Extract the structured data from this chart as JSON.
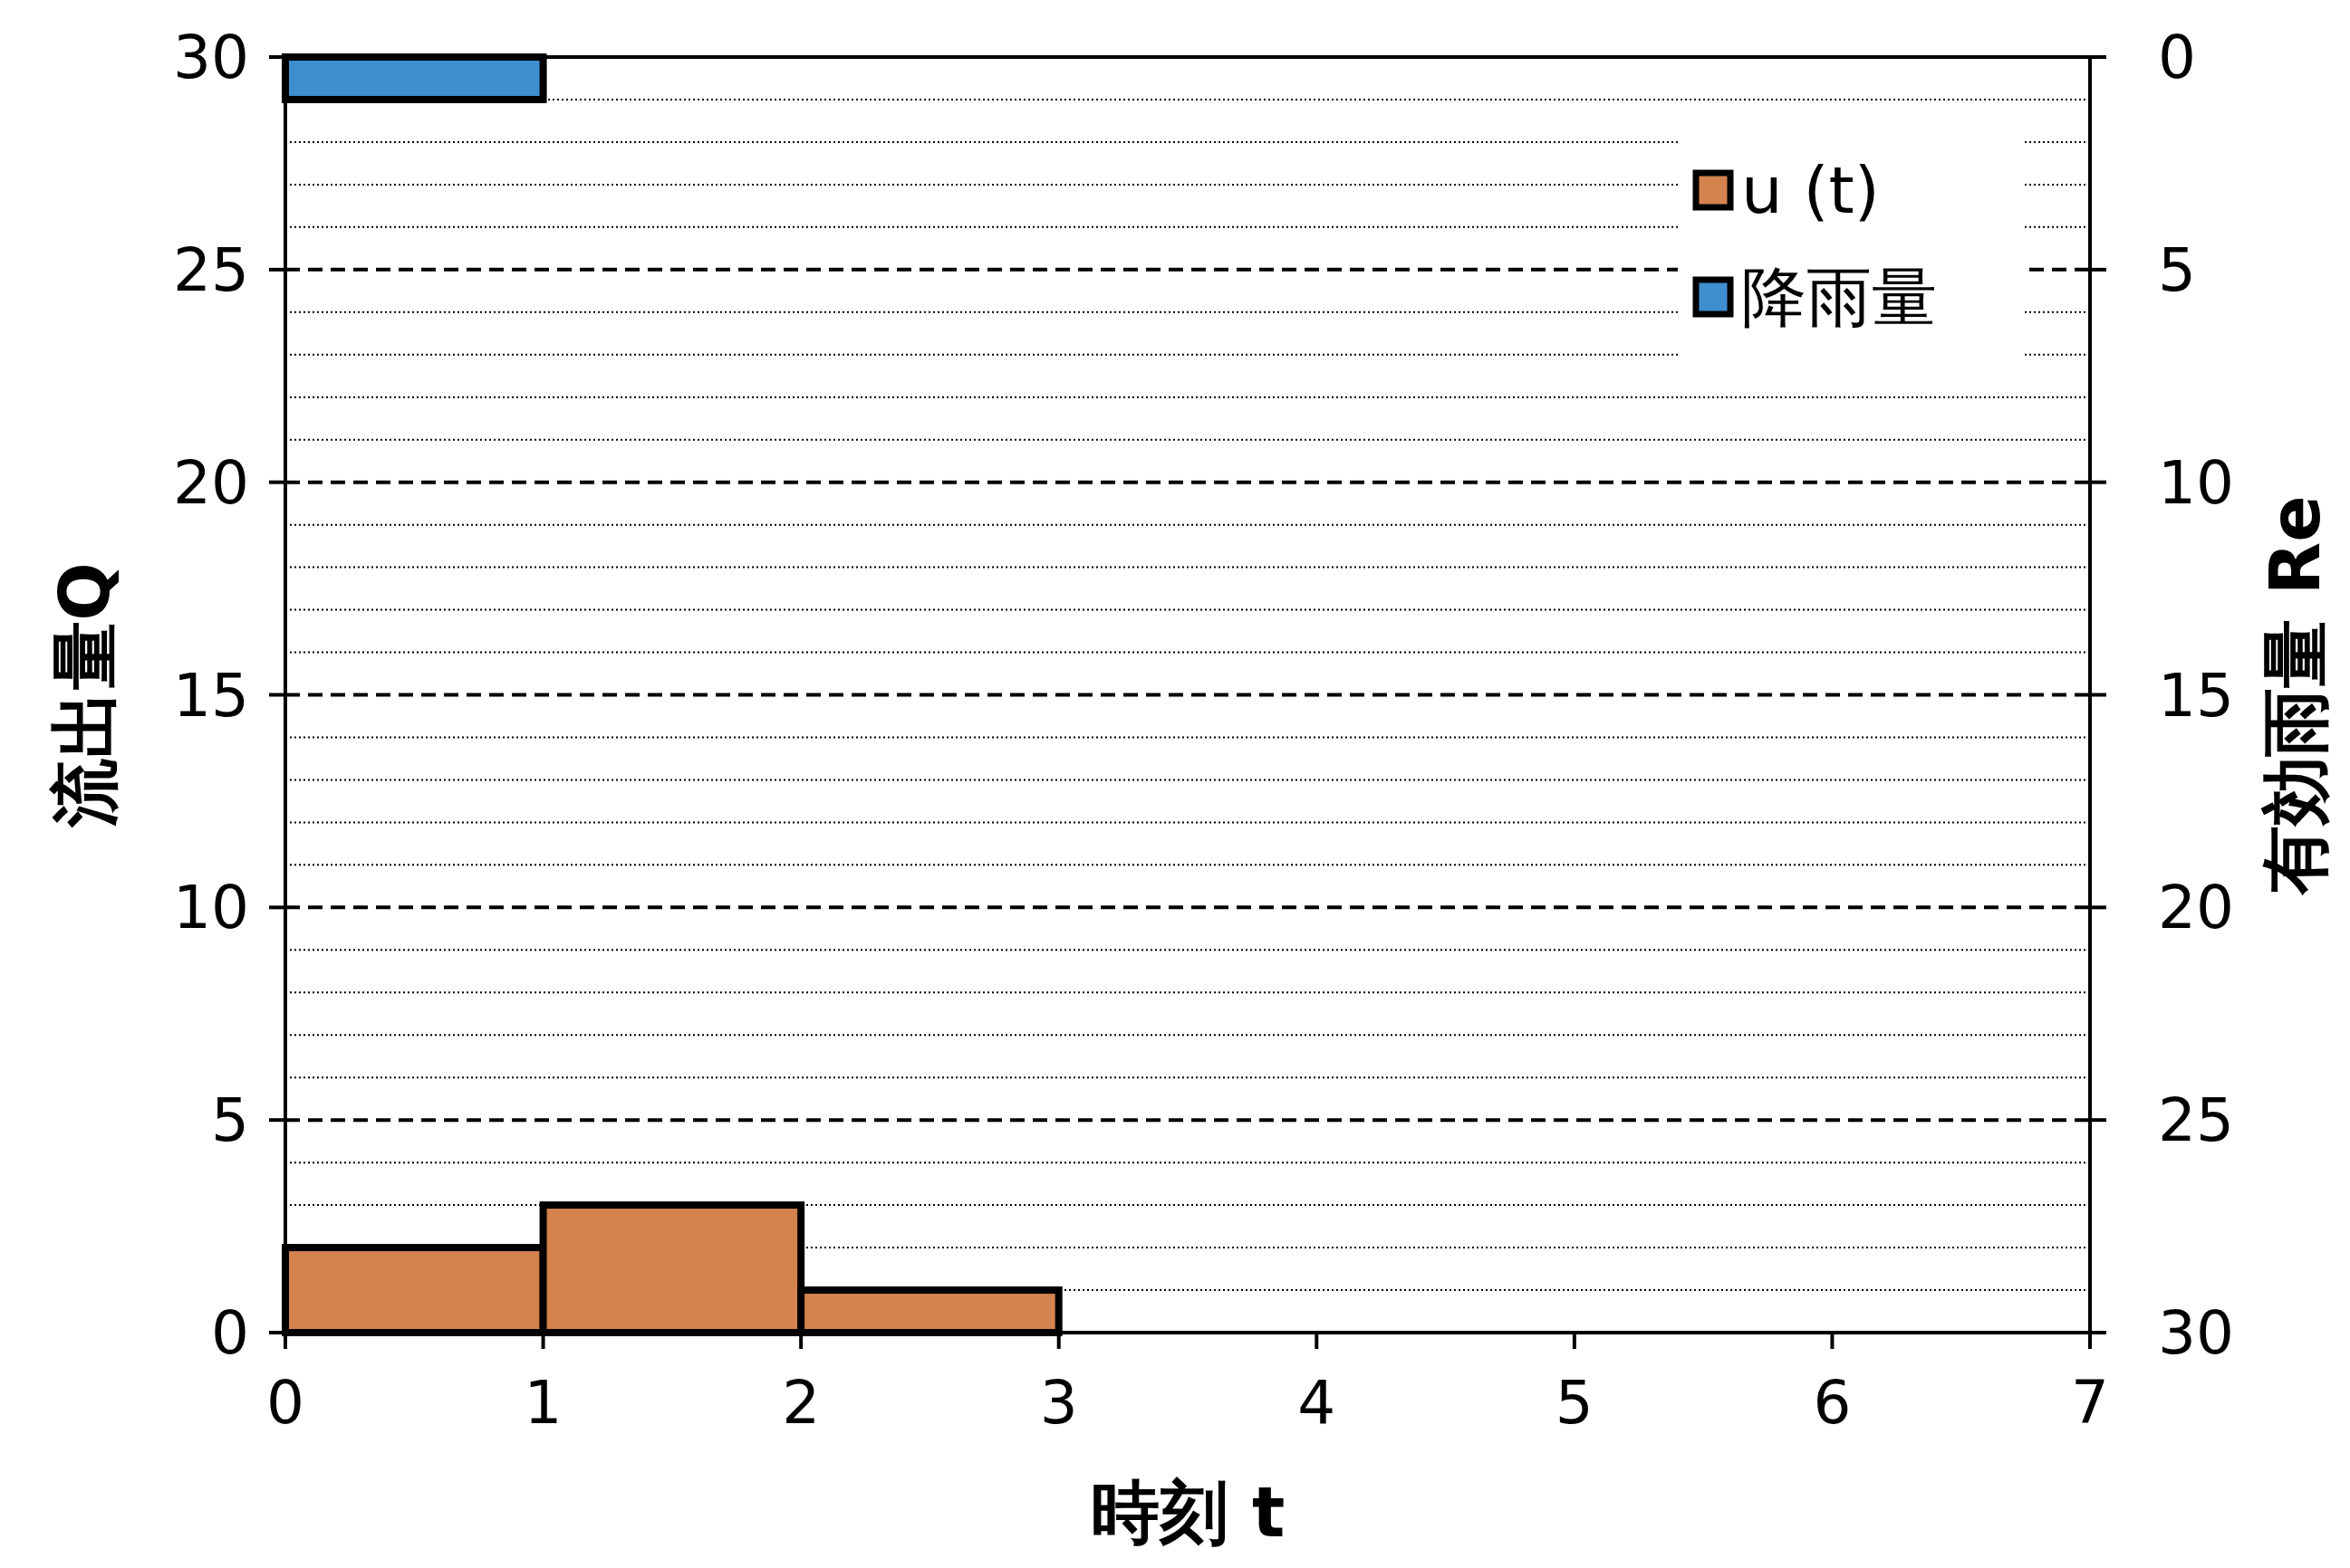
{
  "chart_data": {
    "type": "histogram",
    "xlabel": "時刻 t",
    "ylabel": "流出量Q",
    "y2label": "有効雨量 Re",
    "bins": [
      0,
      1,
      2,
      3
    ],
    "series": [
      {
        "name": "u (t)",
        "color": "#d4834f",
        "values": [
          2,
          3,
          1
        ]
      },
      {
        "name": "降雨量",
        "color": "#3e8fd0",
        "bins": [
          0,
          1
        ],
        "values": [
          1
        ],
        "axis": "y2"
      }
    ],
    "xlim": [
      0,
      7
    ],
    "xticks": [
      0,
      1,
      2,
      3,
      4,
      5,
      6,
      7
    ],
    "ylim": [
      0,
      30
    ],
    "yticks": [
      0,
      5,
      10,
      15,
      20,
      25,
      30
    ],
    "y2lim": [
      30,
      0
    ],
    "y2ticks": [
      0,
      5,
      10,
      15,
      20,
      25,
      30
    ],
    "grid": "y",
    "legend": "top right"
  }
}
